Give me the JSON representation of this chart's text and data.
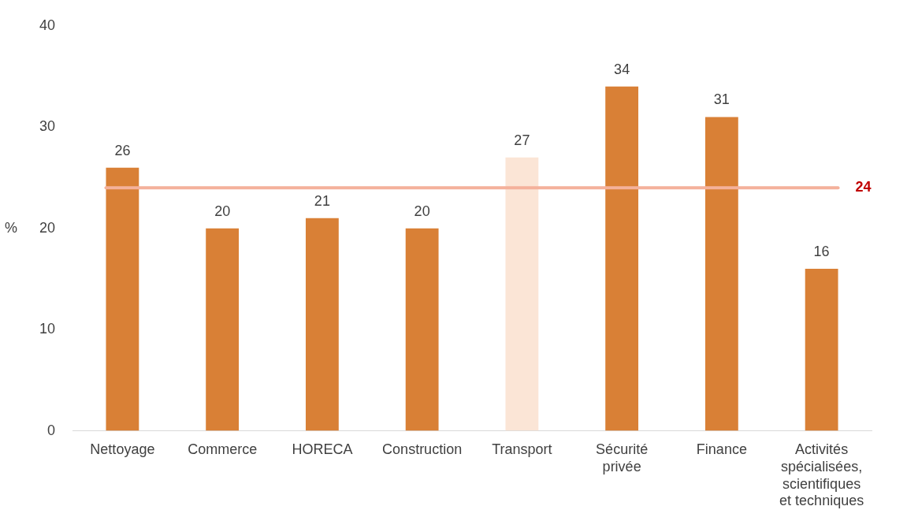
{
  "chart_data": {
    "type": "bar",
    "ylabel": "%",
    "categories": [
      "Nettoyage",
      "Commerce",
      "HORECA",
      "Construction",
      "Transport",
      "Sécurité privée",
      "Finance",
      "Activités spécialisées, scientifiques et techniques"
    ],
    "values": [
      26,
      20,
      21,
      20,
      27,
      34,
      31,
      16
    ],
    "colors": [
      "#d98036",
      "#d98036",
      "#d98036",
      "#d98036",
      "#fbe5d6",
      "#d98036",
      "#d98036",
      "#d98036"
    ],
    "ylim": [
      0,
      40
    ],
    "yticks": [
      0,
      10,
      20,
      30,
      40
    ],
    "grid": false,
    "legend": false,
    "data_labels": true,
    "ref_lines": [
      {
        "axis": "y",
        "value": 24,
        "label": "24",
        "color": "#f4b19b"
      }
    ]
  }
}
